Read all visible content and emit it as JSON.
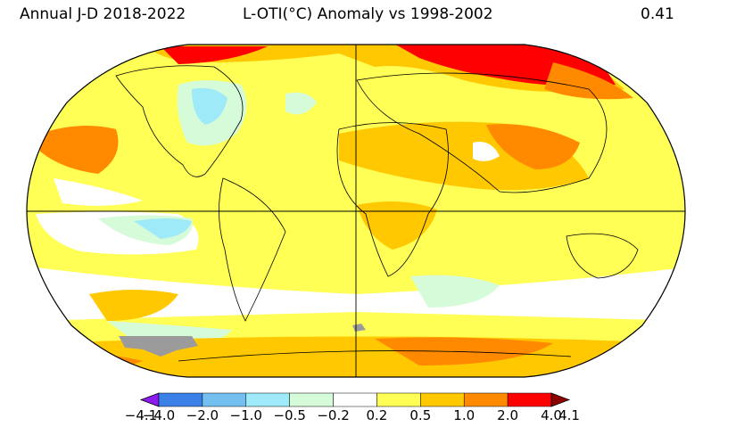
{
  "header": {
    "left_title": "Annual J-D 2018-2022",
    "center_title": "L-OTI(°C) Anomaly vs 1998-2002",
    "right_value": "0.41"
  },
  "legend": {
    "ticks": [
      "−4.1",
      "−4.0",
      "−2.0",
      "−1.0",
      "−0.5",
      "−0.2",
      "0.2",
      "0.5",
      "1.0",
      "2.0",
      "4.0",
      "4.1"
    ],
    "colors": [
      "#8a1cf0",
      "#3b80e6",
      "#73c0f0",
      "#9eeaf8",
      "#d6fbd8",
      "#ffffff",
      "#ffff55",
      "#ffc800",
      "#ff8a00",
      "#ff0000",
      "#8c0000"
    ]
  },
  "map": {
    "projection": "Robinson",
    "background_color": "#ffff55",
    "no_data_color": "#9b9b9b"
  }
}
